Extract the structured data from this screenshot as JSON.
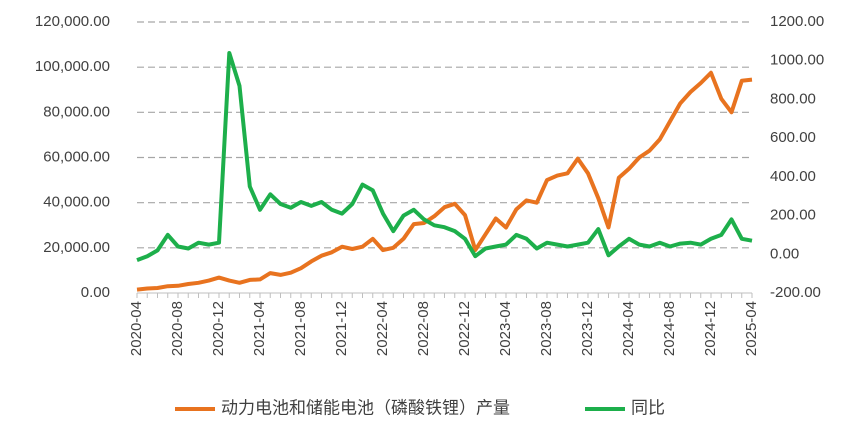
{
  "chart_data": {
    "type": "line",
    "categories": [
      "2020-04",
      null,
      null,
      null,
      "2020-08",
      null,
      null,
      null,
      "2020-12",
      null,
      null,
      null,
      "2021-04",
      null,
      null,
      null,
      "2021-08",
      null,
      null,
      null,
      "2021-12",
      null,
      null,
      null,
      "2022-04",
      null,
      null,
      null,
      "2022-08",
      null,
      null,
      null,
      "2022-12",
      null,
      null,
      null,
      "2023-04",
      null,
      null,
      null,
      "2023-08",
      null,
      null,
      null,
      "2023-12",
      null,
      null,
      null,
      "2024-04",
      null,
      null,
      null,
      "2024-08",
      null,
      null,
      null,
      "2024-12",
      null,
      null,
      null,
      "2025-04"
    ],
    "series": [
      {
        "name": "动力电池和储能电池（磷酸铁锂）产量",
        "color": "#e8731f",
        "values": [
          1500,
          2000,
          2200,
          3000,
          3200,
          4000,
          4500,
          5500,
          6800,
          5500,
          4500,
          5800,
          6000,
          8800,
          8000,
          9000,
          11000,
          14000,
          16500,
          18000,
          20500,
          19500,
          20500,
          24000,
          19000,
          20000,
          24000,
          30500,
          31000,
          34000,
          38000,
          39500,
          34500,
          19000,
          26000,
          33000,
          29000,
          37000,
          41000,
          40000,
          50000,
          52000,
          53000,
          59500,
          53000,
          42000,
          29000,
          51000,
          55000,
          60000,
          63000,
          68000,
          76000,
          84000,
          89000,
          93000,
          97500,
          86000,
          80000,
          94000,
          94500
        ]
      },
      {
        "name": "同比",
        "color": "#1daf4b",
        "axis": "y2",
        "values": [
          -30,
          -10,
          20,
          100,
          40,
          30,
          60,
          50,
          60,
          1040,
          870,
          350,
          230,
          310,
          260,
          240,
          270,
          250,
          270,
          230,
          210,
          260,
          360,
          330,
          210,
          120,
          200,
          230,
          180,
          150,
          140,
          120,
          80,
          -10,
          30,
          40,
          50,
          100,
          80,
          30,
          60,
          50,
          40,
          50,
          60,
          130,
          -5,
          40,
          80,
          50,
          40,
          60,
          40,
          55,
          60,
          50,
          80,
          100,
          180,
          80,
          70
        ]
      }
    ],
    "ylim": [
      0,
      120000
    ],
    "yticks": [
      {
        "value": 0,
        "label": "0.00"
      },
      {
        "value": 20000,
        "label": "20,000.00"
      },
      {
        "value": 40000,
        "label": "40,000.00"
      },
      {
        "value": 60000,
        "label": "60,000.00"
      },
      {
        "value": 80000,
        "label": "80,000.00"
      },
      {
        "value": 100000,
        "label": "100,000.00"
      },
      {
        "value": 120000,
        "label": "120,000.00"
      }
    ],
    "y2lim": [
      -200,
      1200
    ],
    "y2ticks": [
      {
        "value": -200,
        "label": "-200.00"
      },
      {
        "value": 0,
        "label": "0.00"
      },
      {
        "value": 200,
        "label": "200.00"
      },
      {
        "value": 400,
        "label": "400.00"
      },
      {
        "value": 600,
        "label": "600.00"
      },
      {
        "value": 800,
        "label": "800.00"
      },
      {
        "value": 1000,
        "label": "1000.00"
      },
      {
        "value": 1200,
        "label": "1200.00"
      }
    ],
    "grid": true,
    "legend": "bottom"
  }
}
